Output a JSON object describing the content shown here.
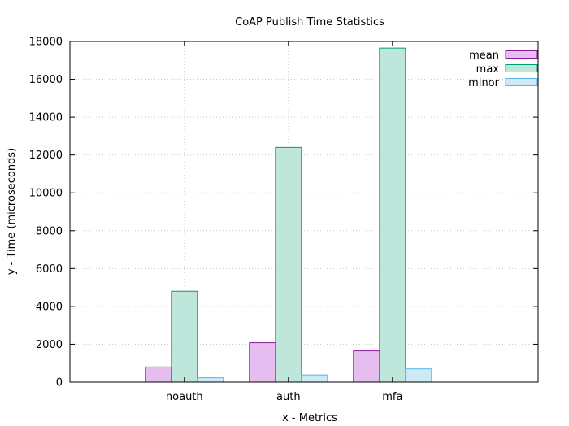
{
  "chart_data": {
    "type": "bar",
    "title": "CoAP Publish Time Statistics",
    "xlabel": "x - Metrics",
    "ylabel": "y - Time (microseconds)",
    "categories": [
      "noauth",
      "auth",
      "mfa"
    ],
    "ylim": [
      0,
      18000
    ],
    "yticks": [
      0,
      2000,
      4000,
      6000,
      8000,
      10000,
      12000,
      14000,
      16000,
      18000
    ],
    "grid": true,
    "legend_position": "top-right",
    "series": [
      {
        "name": "mean",
        "values": [
          800,
          2080,
          1650
        ],
        "fill": "#e6bdf0",
        "stroke": "#8a1a9b"
      },
      {
        "name": "max",
        "values": [
          4800,
          12400,
          17650
        ],
        "fill": "#bfe6da",
        "stroke": "#009e73"
      },
      {
        "name": "minor",
        "values": [
          230,
          380,
          700
        ],
        "fill": "#cdeaf7",
        "stroke": "#56b4e9"
      }
    ]
  }
}
